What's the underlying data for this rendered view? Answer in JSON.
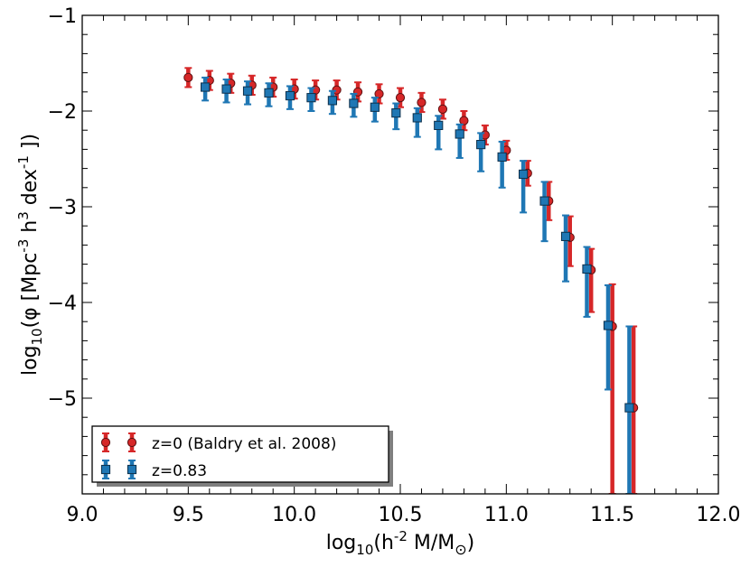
{
  "chart_data": {
    "type": "scatter",
    "title": "",
    "xlabel": {
      "pre": "log",
      "sub": "10",
      "mid": "(h",
      "sup": "-2",
      "post": " M/M",
      "sun": "⊙",
      "close": ")"
    },
    "ylabel": {
      "pre": "log",
      "sub": "10",
      "mid": "(φ [Mpc",
      "sup1": "-3",
      "mid2": " h",
      "sup2": "3",
      "mid3": " dex",
      "sup3": "-1",
      "close": " ])"
    },
    "xlim": [
      9.0,
      12.0
    ],
    "ylim": [
      -6.0,
      -1.0
    ],
    "xticks": [
      9.0,
      9.5,
      10.0,
      10.5,
      11.0,
      11.5,
      12.0
    ],
    "xtick_labels": [
      "9.0",
      "9.5",
      "10.0",
      "10.5",
      "11.0",
      "11.5",
      "12.0"
    ],
    "yticks": [
      -1,
      -2,
      -3,
      -4,
      -5
    ],
    "ytick_labels": [
      "−1",
      "−2",
      "−3",
      "−4",
      "−5"
    ],
    "grid": false,
    "legend_position": "lower-left",
    "series": [
      {
        "name": "z=0 (Baldry et al. 2008)",
        "marker": "circle",
        "color": "#d62728",
        "x": [
          9.5,
          9.6,
          9.7,
          9.8,
          9.9,
          10.0,
          10.1,
          10.2,
          10.3,
          10.4,
          10.5,
          10.6,
          10.7,
          10.8,
          10.9,
          11.0,
          11.1,
          11.2,
          11.3,
          11.4,
          11.5,
          11.6
        ],
        "y": [
          -1.65,
          -1.68,
          -1.71,
          -1.73,
          -1.75,
          -1.77,
          -1.78,
          -1.78,
          -1.8,
          -1.82,
          -1.86,
          -1.91,
          -1.98,
          -2.1,
          -2.25,
          -2.41,
          -2.65,
          -2.94,
          -3.32,
          -3.66,
          -4.25,
          -5.1
        ],
        "err_lo": [
          0.1,
          0.1,
          0.1,
          0.1,
          0.1,
          0.1,
          0.1,
          0.1,
          0.1,
          0.1,
          0.1,
          0.1,
          0.1,
          0.1,
          0.1,
          0.1,
          0.13,
          0.2,
          0.3,
          0.44,
          1.75,
          0.9
        ],
        "err_hi": [
          0.1,
          0.1,
          0.1,
          0.1,
          0.1,
          0.1,
          0.1,
          0.1,
          0.1,
          0.1,
          0.1,
          0.1,
          0.1,
          0.1,
          0.1,
          0.1,
          0.13,
          0.2,
          0.22,
          0.22,
          0.44,
          0.85
        ]
      },
      {
        "name": "z=0.83",
        "marker": "square",
        "color": "#1f77b4",
        "x": [
          9.58,
          9.68,
          9.78,
          9.88,
          9.98,
          10.08,
          10.18,
          10.28,
          10.38,
          10.48,
          10.58,
          10.68,
          10.78,
          10.88,
          10.98,
          11.08,
          11.18,
          11.28,
          11.38,
          11.48,
          11.58
        ],
        "y": [
          -1.75,
          -1.77,
          -1.79,
          -1.81,
          -1.84,
          -1.86,
          -1.89,
          -1.92,
          -1.96,
          -2.02,
          -2.07,
          -2.15,
          -2.24,
          -2.35,
          -2.48,
          -2.66,
          -2.94,
          -3.31,
          -3.65,
          -4.24,
          -5.1
        ],
        "err_lo": [
          0.14,
          0.14,
          0.14,
          0.14,
          0.14,
          0.14,
          0.14,
          0.14,
          0.15,
          0.17,
          0.2,
          0.25,
          0.25,
          0.28,
          0.32,
          0.4,
          0.42,
          0.47,
          0.5,
          0.67,
          0.9
        ],
        "err_hi": [
          0.1,
          0.1,
          0.1,
          0.1,
          0.1,
          0.1,
          0.1,
          0.1,
          0.1,
          0.1,
          0.1,
          0.1,
          0.1,
          0.12,
          0.16,
          0.14,
          0.2,
          0.22,
          0.23,
          0.42,
          0.85
        ]
      }
    ]
  }
}
